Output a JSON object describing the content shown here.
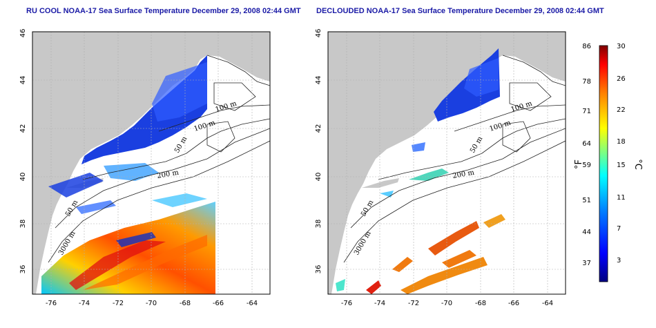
{
  "left_panel": {
    "title": "RU COOL NOAA-17 Sea Surface Temperature December 29, 2008 02:44 GMT"
  },
  "right_panel": {
    "title": "DECLOUDED NOAA-17 Sea Surface Temperature December 29, 2008 02:44 GMT"
  },
  "axes": {
    "x_ticks": [
      "-76",
      "-74",
      "-72",
      "-70",
      "-68",
      "-66",
      "-64"
    ],
    "y_ticks": [
      "36",
      "38",
      "40",
      "42",
      "44",
      "46"
    ]
  },
  "contour_labels": {
    "left": [
      "100 m",
      "100 m",
      "50 m",
      "200 m",
      "50 m",
      "3000 m"
    ],
    "right": [
      "100 m",
      "100 m",
      "50 m",
      "200 m",
      "50 m",
      "3000 m"
    ]
  },
  "colorbar": {
    "fahrenheit_label": "°F",
    "celsius_label": "°C",
    "fahrenheit_ticks": [
      "86",
      "78",
      "71",
      "64",
      "59",
      "51",
      "44",
      "37"
    ],
    "celsius_ticks": [
      "30",
      "26",
      "22",
      "18",
      "15",
      "11",
      "7",
      "3"
    ],
    "colors": [
      "#00007f",
      "#0000ff",
      "#007fff",
      "#00ffff",
      "#7fff7f",
      "#ffff00",
      "#ff7f00",
      "#ff0000",
      "#7f0000"
    ]
  },
  "colors": {
    "land": "#c8c8c8",
    "cold_water": "#1a3fe0",
    "warm_water": "#f07a10",
    "title": "#1a1aa6"
  }
}
